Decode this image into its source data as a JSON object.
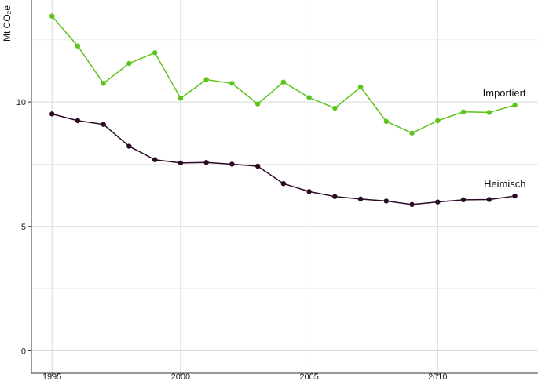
{
  "chart_data": {
    "type": "line",
    "title": "",
    "xlabel": "",
    "ylabel": "Mt CO₂e",
    "x": [
      1995,
      1996,
      1997,
      1998,
      1999,
      2000,
      2001,
      2002,
      2003,
      2004,
      2005,
      2006,
      2007,
      2008,
      2009,
      2010,
      2011,
      2012,
      2013
    ],
    "xticks": [
      1995,
      2000,
      2005,
      2010
    ],
    "xtick_labels": [
      "1995",
      "2000",
      "2005",
      "2010"
    ],
    "yticks": [
      0,
      5,
      10
    ],
    "ytick_labels": [
      "0",
      "5",
      "10"
    ],
    "xlim": [
      1994.2,
      2013.9
    ],
    "ylim": [
      -0.9,
      14.1
    ],
    "grid": true,
    "legend": "none (series labelled directly at line ends)",
    "series": [
      {
        "name": "Importiert",
        "color": "#5cc31a",
        "values": [
          13.45,
          12.25,
          10.75,
          11.55,
          11.98,
          10.15,
          10.9,
          10.75,
          9.92,
          10.8,
          10.18,
          9.75,
          10.6,
          9.22,
          8.75,
          9.25,
          9.6,
          9.58,
          9.87
        ]
      },
      {
        "name": "Heimisch",
        "color": "#2a0a24",
        "values": [
          9.52,
          9.25,
          9.1,
          8.22,
          7.68,
          7.55,
          7.57,
          7.5,
          7.42,
          6.72,
          6.4,
          6.2,
          6.1,
          6.02,
          5.88,
          5.98,
          6.07,
          6.08,
          6.22
        ]
      }
    ]
  }
}
